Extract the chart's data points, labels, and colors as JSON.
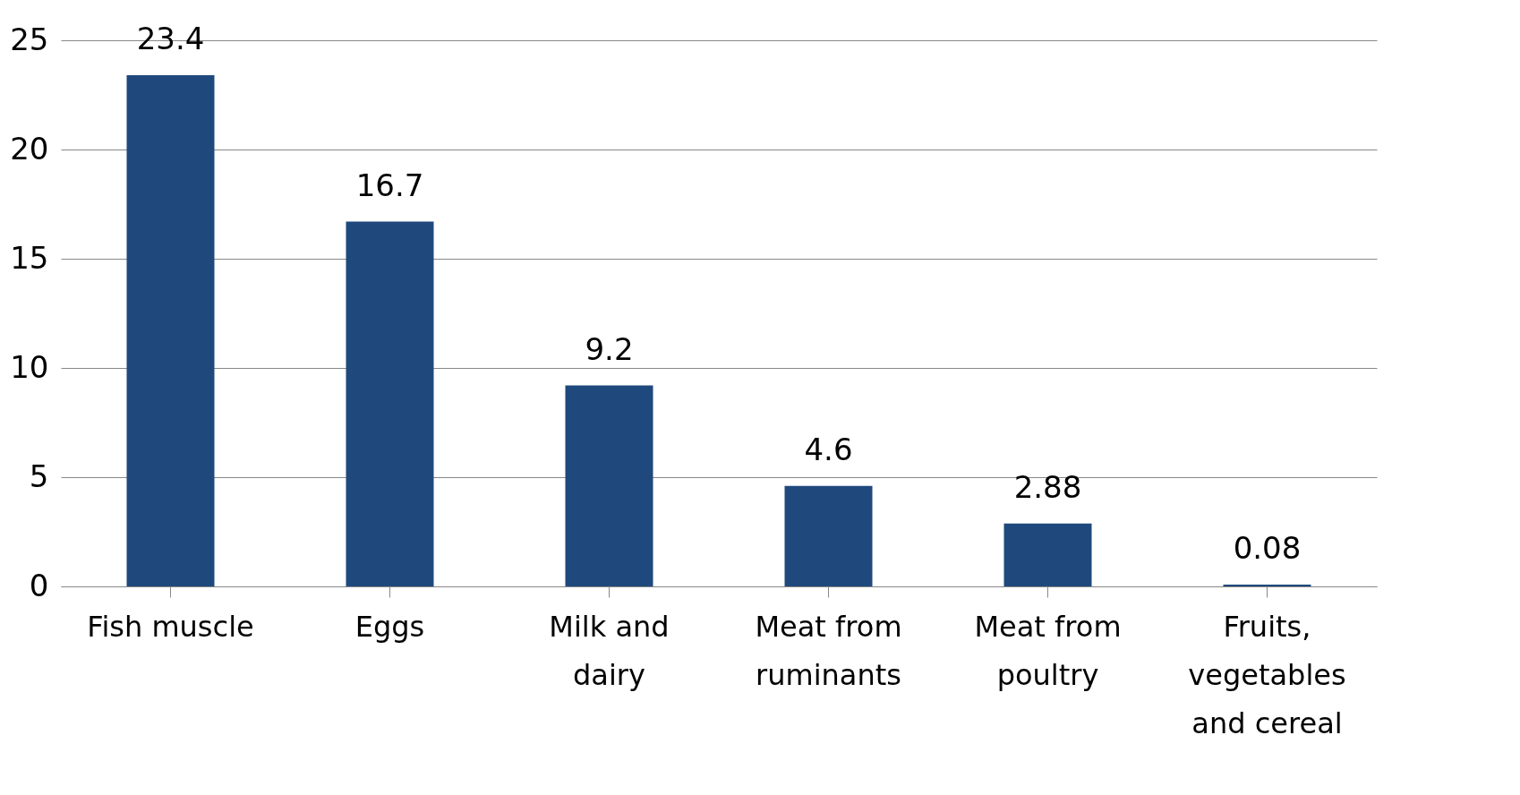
{
  "chart_data": {
    "type": "bar",
    "categories": [
      "Fish muscle",
      "Eggs",
      "Milk and dairy",
      "Meat from ruminants",
      "Meat from poultry",
      "Fruits, vegetables and cereal"
    ],
    "values": [
      23.4,
      16.7,
      9.2,
      4.6,
      2.88,
      0.08
    ],
    "color": "#1f497d",
    "ylim": [
      0,
      25
    ],
    "yticks": [
      0,
      5,
      10,
      15,
      20,
      25
    ],
    "grid": "y",
    "data_labels": true
  }
}
